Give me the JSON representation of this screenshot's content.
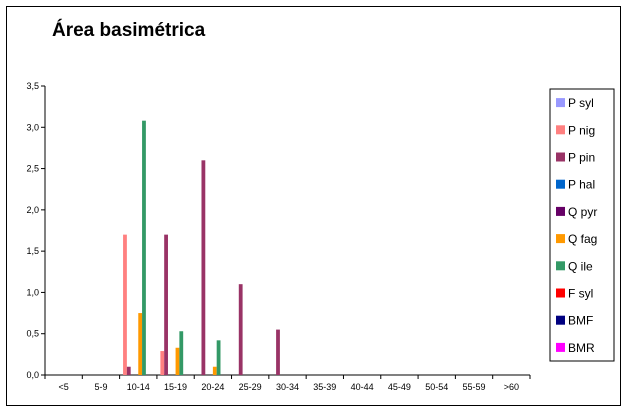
{
  "chart_data": {
    "type": "bar",
    "title": "Área basimétrica",
    "xlabel": "",
    "ylabel": "",
    "categories": [
      "<5",
      "5-9",
      "10-14",
      "15-19",
      "20-24",
      "25-29",
      "30-34",
      "35-39",
      "40-44",
      "45-49",
      "50-54",
      "55-59",
      ">60"
    ],
    "ylim": [
      0,
      3.5
    ],
    "yticks": [
      "0,0",
      "0,5",
      "1,0",
      "1,5",
      "2,0",
      "2,5",
      "3,0",
      "3,5"
    ],
    "grid": false,
    "legend_position": "right",
    "series": [
      {
        "name": "P syl",
        "color": "#9999ff",
        "values": [
          0,
          0,
          0,
          0,
          0,
          0,
          0,
          0,
          0,
          0,
          0,
          0,
          0
        ]
      },
      {
        "name": "P nig",
        "color": "#ff8080",
        "values": [
          0,
          0,
          1.7,
          0.29,
          0,
          0,
          0,
          0,
          0,
          0,
          0,
          0,
          0
        ]
      },
      {
        "name": "P pin",
        "color": "#993366",
        "values": [
          0,
          0,
          0.1,
          1.7,
          2.6,
          1.1,
          0.55,
          0,
          0,
          0,
          0,
          0,
          0
        ]
      },
      {
        "name": "P hal",
        "color": "#0066cc",
        "values": [
          0,
          0,
          0,
          0,
          0,
          0,
          0,
          0,
          0,
          0,
          0,
          0,
          0
        ]
      },
      {
        "name": "Q pyr",
        "color": "#660066",
        "values": [
          0,
          0,
          0,
          0,
          0,
          0,
          0,
          0,
          0,
          0,
          0,
          0,
          0
        ]
      },
      {
        "name": "Q fag",
        "color": "#ff9900",
        "values": [
          0,
          0,
          0.75,
          0.33,
          0.1,
          0,
          0,
          0,
          0,
          0,
          0,
          0,
          0
        ]
      },
      {
        "name": "Q ile",
        "color": "#339966",
        "values": [
          0,
          0,
          3.08,
          0.53,
          0.42,
          0,
          0,
          0,
          0,
          0,
          0,
          0,
          0
        ]
      },
      {
        "name": "F syl",
        "color": "#ff0000",
        "values": [
          0,
          0,
          0,
          0,
          0,
          0,
          0,
          0,
          0,
          0,
          0,
          0,
          0
        ]
      },
      {
        "name": "BMF",
        "color": "#000080",
        "values": [
          0,
          0,
          0,
          0,
          0,
          0,
          0,
          0,
          0,
          0,
          0,
          0,
          0
        ]
      },
      {
        "name": "BMR",
        "color": "#ff00ff",
        "values": [
          0,
          0,
          0,
          0,
          0,
          0,
          0,
          0,
          0,
          0,
          0,
          0,
          0
        ]
      }
    ]
  }
}
